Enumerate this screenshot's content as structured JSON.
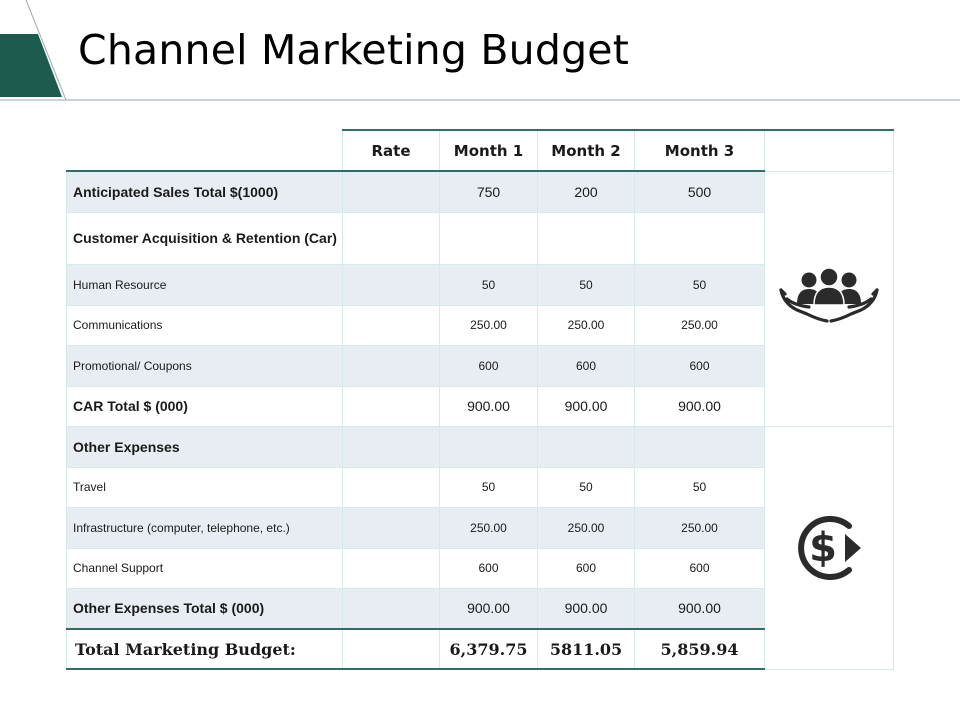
{
  "slide": {
    "title": "Channel Marketing Budget"
  },
  "colors": {
    "accent_dark": "#1d5b4f",
    "accent_border": "#2f6f67",
    "row_shade": "#e8edf4",
    "grid_line": "#d6eaea",
    "icon": "#2b2b2b"
  },
  "table": {
    "headers": [
      "Rate",
      "Month 1",
      "Month 2",
      "Month 3"
    ],
    "rows": [
      {
        "label": "Anticipated Sales Total $(1000)",
        "rate": "",
        "m1": "750",
        "m2": "200",
        "m3": "500"
      },
      {
        "label": "Customer Acquisition & Retention (Car)",
        "rate": "",
        "m1": "",
        "m2": "",
        "m3": ""
      },
      {
        "label": "Human Resource",
        "rate": "",
        "m1": "50",
        "m2": "50",
        "m3": "50"
      },
      {
        "label": "Communications",
        "rate": "",
        "m1": "250.00",
        "m2": "250.00",
        "m3": "250.00"
      },
      {
        "label": "Promotional/ Coupons",
        "rate": "",
        "m1": "600",
        "m2": "600",
        "m3": "600"
      },
      {
        "label": "CAR Total $ (000)",
        "rate": "",
        "m1": "900.00",
        "m2": "900.00",
        "m3": "900.00"
      },
      {
        "label": "Other Expenses",
        "rate": "",
        "m1": "",
        "m2": "",
        "m3": ""
      },
      {
        "label": "Travel",
        "rate": "",
        "m1": "50",
        "m2": "50",
        "m3": "50"
      },
      {
        "label": "Infrastructure (computer, telephone, etc.)",
        "rate": "",
        "m1": "250.00",
        "m2": "250.00",
        "m3": "250.00"
      },
      {
        "label": "Channel Support",
        "rate": "",
        "m1": "600",
        "m2": "600",
        "m3": "600"
      },
      {
        "label": "Other Expenses Total $ (000)",
        "rate": "",
        "m1": "900.00",
        "m2": "900.00",
        "m3": "900.00"
      }
    ],
    "total": {
      "label": "Total Marketing Budget:",
      "rate": "",
      "m1": "6,379.75",
      "m2": "5811.05",
      "m3": "5,859.94"
    }
  },
  "icons": {
    "top": "people-in-hands-icon",
    "bottom": "dollar-cycle-icon"
  }
}
